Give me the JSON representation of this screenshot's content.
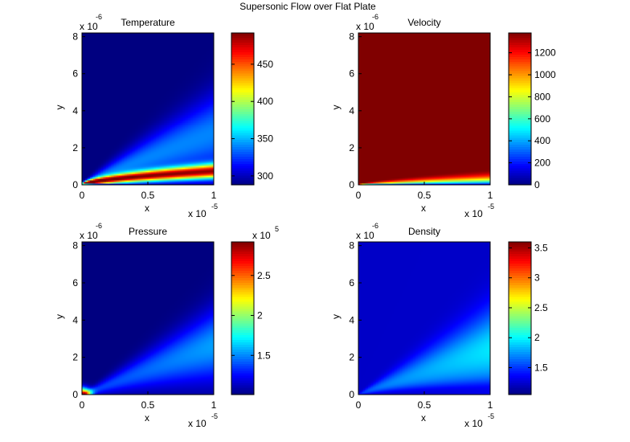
{
  "figure": {
    "title": "Supersonic Flow over Flat Plate"
  },
  "chart_data": [
    {
      "type": "heatmap",
      "title": "Temperature",
      "xlabel": "x",
      "ylabel": "y",
      "x_ticks": [
        "0",
        "0.5",
        "1"
      ],
      "y_ticks": [
        "0",
        "2",
        "4",
        "6",
        "8"
      ],
      "x_exponent_base": "x 10",
      "x_exponent_power": "-5",
      "y_exponent_base": "x 10",
      "y_exponent_power": "-6",
      "xlim": [
        0,
        1e-05
      ],
      "ylim": [
        0,
        8.2e-06
      ],
      "colormap": "jet",
      "colorbar": {
        "ticks": [
          "300",
          "350",
          "400",
          "450"
        ],
        "tick_values": [
          300,
          350,
          400,
          450
        ],
        "range": [
          288,
          492
        ],
        "exponent_base": "",
        "exponent_power": ""
      },
      "field": {
        "freestream": 288,
        "shock_peak": 340,
        "layer_center": 470,
        "wall": 300
      }
    },
    {
      "type": "heatmap",
      "title": "Velocity",
      "xlabel": "x",
      "ylabel": "y",
      "x_ticks": [
        "0",
        "0.5",
        "1"
      ],
      "y_ticks": [
        "0",
        "2",
        "4",
        "6",
        "8"
      ],
      "x_exponent_base": "x 10",
      "x_exponent_power": "-5",
      "y_exponent_base": "x 10",
      "y_exponent_power": "-6",
      "xlim": [
        0,
        1e-05
      ],
      "ylim": [
        0,
        8.2e-06
      ],
      "colormap": "jet",
      "colorbar": {
        "ticks": [
          "0",
          "200",
          "400",
          "600",
          "800",
          "1000",
          "1200"
        ],
        "tick_values": [
          0,
          200,
          400,
          600,
          800,
          1000,
          1200
        ],
        "range": [
          0,
          1380
        ],
        "exponent_base": "",
        "exponent_power": ""
      },
      "field": {
        "freestream": 1380,
        "wall": 0
      }
    },
    {
      "type": "heatmap",
      "title": "Pressure",
      "xlabel": "x",
      "ylabel": "y",
      "x_ticks": [
        "0",
        "0.5",
        "1"
      ],
      "y_ticks": [
        "0",
        "2",
        "4",
        "6",
        "8"
      ],
      "x_exponent_base": "x 10",
      "x_exponent_power": "-5",
      "y_exponent_base": "x 10",
      "y_exponent_power": "-6",
      "xlim": [
        0,
        1e-05
      ],
      "ylim": [
        0,
        8.2e-06
      ],
      "colormap": "jet",
      "colorbar": {
        "ticks": [
          "1.5",
          "2",
          "2.5"
        ],
        "tick_values": [
          150000,
          200000,
          250000
        ],
        "range": [
          101000,
          292000
        ],
        "exponent_base": "x 10",
        "exponent_power": "5"
      },
      "field": {
        "freestream": 101000,
        "shock_peak": 155000,
        "leading_edge_peak": 292000
      }
    },
    {
      "type": "heatmap",
      "title": "Density",
      "xlabel": "x",
      "ylabel": "y",
      "x_ticks": [
        "0",
        "0.5",
        "1"
      ],
      "y_ticks": [
        "0",
        "2",
        "4",
        "6",
        "8"
      ],
      "x_exponent_base": "x 10",
      "x_exponent_power": "-5",
      "y_exponent_base": "x 10",
      "y_exponent_power": "-6",
      "xlim": [
        0,
        1e-05
      ],
      "ylim": [
        0,
        8.2e-06
      ],
      "colormap": "jet",
      "colorbar": {
        "ticks": [
          "1.5",
          "2",
          "2.5",
          "3",
          "3.5"
        ],
        "tick_values": [
          1.5,
          2,
          2.5,
          3,
          3.5
        ],
        "range": [
          1.05,
          3.6
        ],
        "exponent_base": "",
        "exponent_power": ""
      },
      "field": {
        "freestream": 1.23,
        "shock_peak": 1.95,
        "low_region": 1.05
      }
    }
  ]
}
